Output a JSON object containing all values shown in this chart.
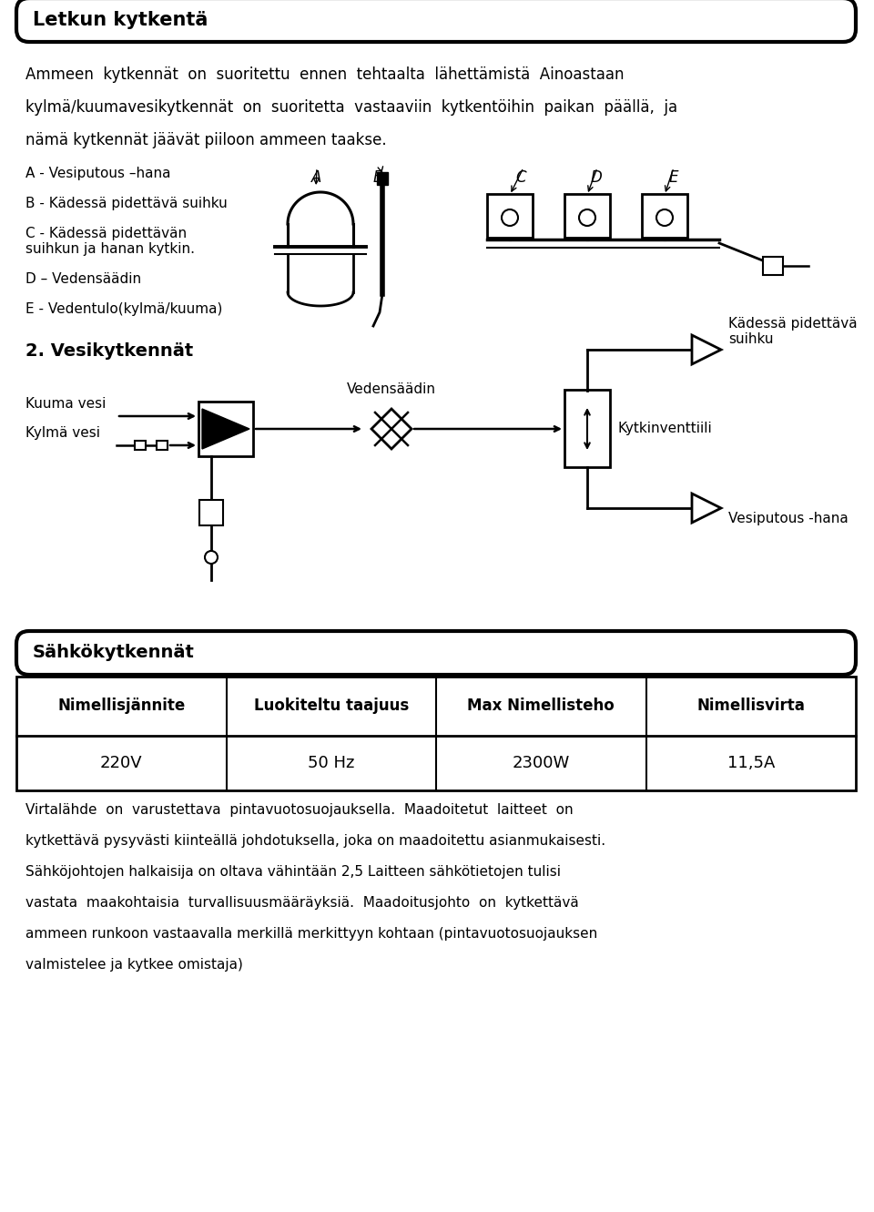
{
  "bg_color": "#ffffff",
  "text_color": "#000000",
  "title1": "Letkun kytkentä",
  "para1_lines": [
    "Ammeen  kytkennät  on  suoritettu  ennen  tehtaalta  lähettämistä  Ainoastaan",
    "kylmä/kuumavesikytkennät  on  suoritetta  vastaaviin  kytkentöihin  paikan  päällä,  ja",
    "nämä kytkennät jäävät piiloon ammeen taakse."
  ],
  "labels_left": [
    "A - Vesiputous –hana",
    "B - Kädessä pidettävä suihku",
    "C - Kädessä pidettävän\nsuihkun ja hanan kytkin.",
    "D – Vedensäädin",
    "E - Vedentulo(kylmä/kuuma)"
  ],
  "section2_title": "2. Vesikytkennät",
  "flow_labels": [
    "Kuuma vesi",
    "Kylmä vesi",
    "Vedensäädin",
    "Kädessä pidettävä\nsuihku",
    "Kytkinventtiili",
    "Vesiputous -hana"
  ],
  "title2": "Sähkökytkennät",
  "table_headers": [
    "Nimellisjännite",
    "Luokiteltu taajuus",
    "Max Nimellisteho",
    "Nimellisvirta"
  ],
  "table_values": [
    "220V",
    "50 Hz",
    "2300W",
    "11,5A"
  ],
  "footer_lines": [
    "Virtalähde  on  varustettava  pintavuotosuojauksella.  Maadoitetut  laitteet  on",
    "kytkettävä pysyvästi kiinteällä johdotuksella, joka on maadoitettu asianmukaisesti.",
    "Sähköjohtojen halkaisija on oltava vähintään 2,5 Laitteen sähkötietojen tulisi",
    "vastata  maakohtaisia  turvallisuusmääräyksiä.  Maadoitusjohto  on  kytkettävä",
    "ammeen runkoon vastaavalla merkillä merkittyyn kohtaan (pintavuotosuojauksen",
    "valmistelee ja kytkee omistaja)"
  ]
}
